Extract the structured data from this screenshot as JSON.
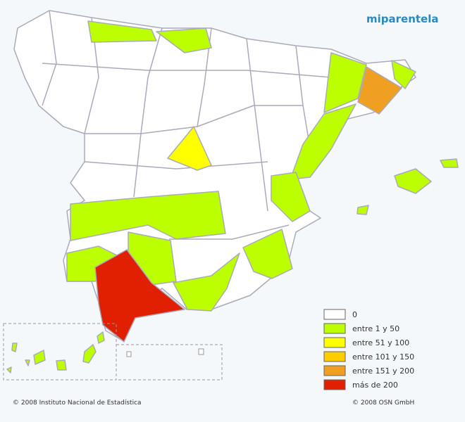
{
  "logo": {
    "text": "miparentela"
  },
  "legend": {
    "items": [
      {
        "label": "0",
        "color": "#ffffff"
      },
      {
        "label": "entre 1 y 50",
        "color": "#bbff00"
      },
      {
        "label": "entre 51 y 100",
        "color": "#ffff00"
      },
      {
        "label": "entre 101 y 150",
        "color": "#ffcc00"
      },
      {
        "label": "entre 151 y 200",
        "color": "#f0a020"
      },
      {
        "label": "más de 200",
        "color": "#e02000"
      }
    ]
  },
  "footer": {
    "left": "© 2008 Instituto Nacional de Estadística",
    "right": "© 2008 OSN GmbH"
  }
}
